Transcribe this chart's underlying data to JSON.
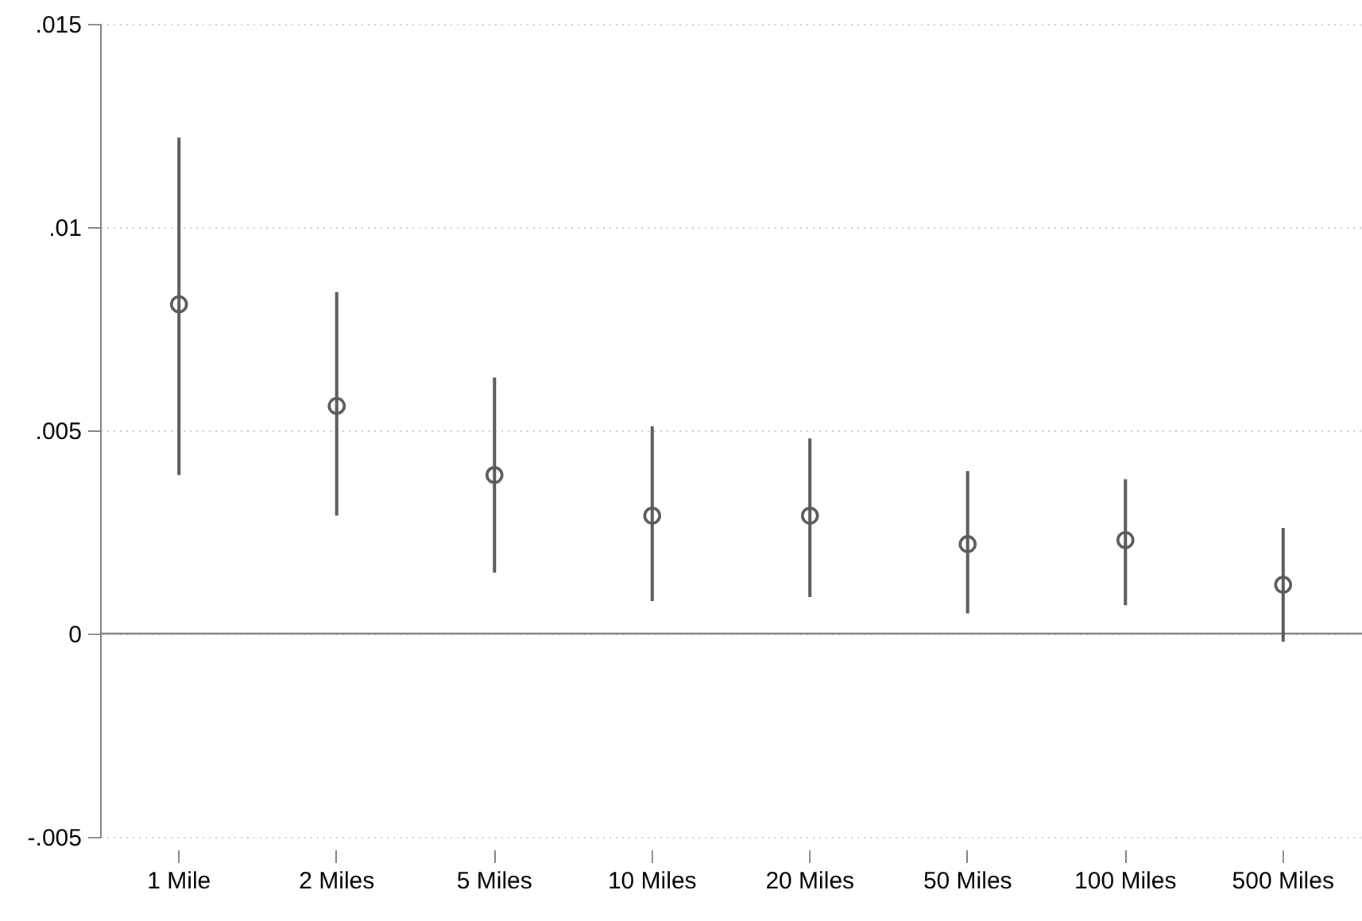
{
  "chart_data": {
    "type": "scatter",
    "categories": [
      "1 Mile",
      "2 Miles",
      "5 Miles",
      "10 Miles",
      "20 Miles",
      "50 Miles",
      "100 Miles",
      "500 Miles"
    ],
    "values": [
      0.0081,
      0.0056,
      0.0039,
      0.0029,
      0.0029,
      0.0022,
      0.0023,
      0.0012
    ],
    "errors": [
      [
        0.0039,
        0.0122
      ],
      [
        0.0029,
        0.0084
      ],
      [
        0.0015,
        0.0063
      ],
      [
        0.0008,
        0.0051
      ],
      [
        0.0009,
        0.0048
      ],
      [
        0.0005,
        0.004
      ],
      [
        0.0007,
        0.0038
      ],
      [
        -0.0002,
        0.0026
      ]
    ],
    "color": "#5a5a5a",
    "marker": "circle",
    "grid": "y",
    "ylim": [
      -0.005,
      0.015
    ],
    "yticks": [
      {
        "value": -0.005,
        "label": "-.005"
      },
      {
        "value": 0,
        "label": "0"
      },
      {
        "value": 0.005,
        "label": ".005"
      },
      {
        "value": 0.01,
        "label": ".01"
      },
      {
        "value": 0.015,
        "label": ".015"
      }
    ],
    "ref_lines": [
      {
        "axis": "y",
        "value": 0,
        "color": "#808080"
      }
    ]
  }
}
